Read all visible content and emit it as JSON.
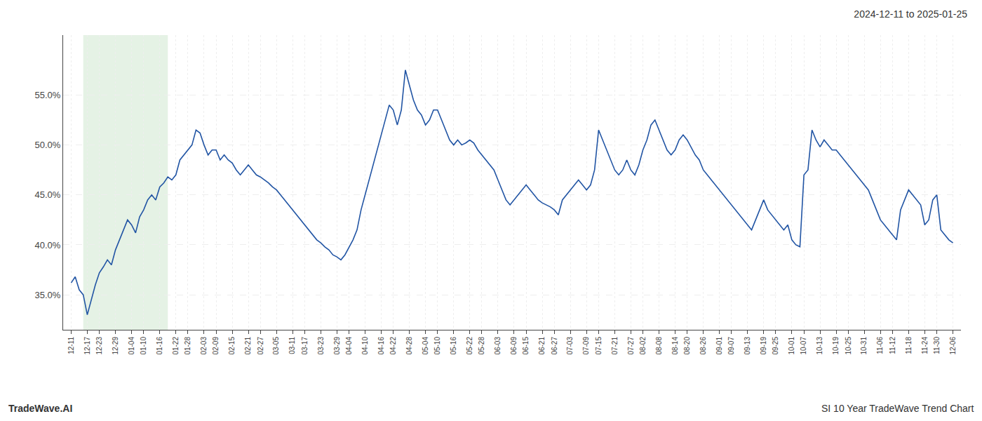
{
  "chart_data": {
    "type": "line",
    "title": "2024-12-11 to 2025-01-25",
    "annotations": [
      "TradeWave.AI",
      "SI 10 Year TradeWave Trend Chart"
    ],
    "color": "#2255a4",
    "grid": true,
    "highlight": {
      "range": [
        3,
        24
      ],
      "color": "#d4ead4"
    },
    "xlim": [
      -2,
      221
    ],
    "ylim": [
      31.5,
      61.0
    ],
    "yticks": [
      {
        "value": 35.0,
        "label": "35.0%"
      },
      {
        "value": 40.0,
        "label": "40.0%"
      },
      {
        "value": 45.0,
        "label": "45.0%"
      },
      {
        "value": 50.0,
        "label": "50.0%"
      },
      {
        "value": 55.0,
        "label": "55.0%"
      }
    ],
    "categories": [
      "12-11",
      null,
      null,
      null,
      "12-17",
      null,
      null,
      "12-23",
      null,
      null,
      null,
      "12-29",
      null,
      null,
      null,
      "01-04",
      null,
      null,
      "01-10",
      null,
      null,
      null,
      "01-16",
      null,
      null,
      null,
      "01-22",
      null,
      null,
      "01-28",
      null,
      null,
      null,
      "02-03",
      null,
      null,
      "02-09",
      null,
      null,
      null,
      "02-15",
      null,
      null,
      null,
      "02-21",
      null,
      null,
      "02-27",
      null,
      null,
      null,
      "03-05",
      null,
      null,
      null,
      "03-11",
      null,
      null,
      "03-17",
      null,
      null,
      null,
      "03-23",
      null,
      null,
      null,
      "03-29",
      null,
      null,
      "04-04",
      null,
      null,
      null,
      "04-10",
      null,
      null,
      null,
      "04-16",
      null,
      null,
      "04-22",
      null,
      null,
      null,
      "04-28",
      null,
      null,
      null,
      "05-04",
      null,
      null,
      "05-10",
      null,
      null,
      null,
      "05-16",
      null,
      null,
      null,
      "05-22",
      null,
      null,
      "05-28",
      null,
      null,
      null,
      "06-03",
      null,
      null,
      null,
      "06-09",
      null,
      null,
      "06-15",
      null,
      null,
      null,
      "06-21",
      null,
      null,
      "06-27",
      null,
      null,
      null,
      "07-03",
      null,
      null,
      null,
      "07-09",
      null,
      null,
      "07-15",
      null,
      null,
      null,
      "07-21",
      null,
      null,
      null,
      "07-27",
      null,
      null,
      "08-02",
      null,
      null,
      null,
      "08-08",
      null,
      null,
      null,
      "08-14",
      null,
      null,
      "08-20",
      null,
      null,
      null,
      "08-26",
      null,
      null,
      null,
      "09-01",
      null,
      null,
      "09-07",
      null,
      null,
      null,
      "09-13",
      null,
      null,
      null,
      "09-19",
      null,
      null,
      "09-25",
      null,
      null,
      null,
      "10-01",
      null,
      null,
      "10-07",
      null,
      null,
      null,
      "10-13",
      null,
      null,
      null,
      "10-19",
      null,
      null,
      "10-25",
      null,
      null,
      null,
      "10-31",
      null,
      null,
      null,
      "11-06",
      null,
      null,
      "11-12",
      null,
      null,
      null,
      "11-18",
      null,
      null,
      null,
      "11-24",
      null,
      null,
      "11-30",
      null,
      null,
      null,
      "12-06"
    ],
    "values": [
      36.2,
      36.8,
      35.5,
      35.0,
      33.0,
      34.5,
      36.0,
      37.2,
      37.8,
      38.5,
      38.0,
      39.5,
      40.5,
      41.5,
      42.5,
      42.0,
      41.2,
      42.8,
      43.5,
      44.5,
      45.0,
      44.5,
      45.8,
      46.2,
      46.8,
      46.5,
      47.0,
      48.5,
      49.0,
      49.5,
      50.0,
      51.5,
      51.2,
      50.0,
      49.0,
      49.5,
      49.5,
      48.5,
      49.0,
      48.5,
      48.2,
      47.5,
      47.0,
      47.5,
      48.0,
      47.5,
      47.0,
      46.8,
      46.5,
      46.2,
      45.8,
      45.5,
      45.0,
      44.5,
      44.0,
      43.5,
      43.0,
      42.5,
      42.0,
      41.5,
      41.0,
      40.5,
      40.2,
      39.8,
      39.5,
      39.0,
      38.8,
      38.5,
      39.0,
      39.8,
      40.5,
      41.5,
      43.5,
      45.0,
      46.5,
      48.0,
      49.5,
      51.0,
      52.5,
      54.0,
      53.5,
      52.0,
      53.5,
      57.5,
      56.0,
      54.5,
      53.5,
      53.0,
      52.0,
      52.5,
      53.5,
      53.5,
      52.5,
      51.5,
      50.5,
      50.0,
      50.5,
      50.0,
      50.2,
      50.5,
      50.2,
      49.5,
      49.0,
      48.5,
      48.0,
      47.5,
      46.5,
      45.5,
      44.5,
      44.0,
      44.5,
      45.0,
      45.5,
      46.0,
      45.5,
      45.0,
      44.5,
      44.2,
      44.0,
      43.8,
      43.5,
      43.0,
      44.5,
      45.0,
      45.5,
      46.0,
      46.5,
      46.0,
      45.5,
      46.0,
      47.5,
      51.5,
      50.5,
      49.5,
      48.5,
      47.5,
      47.0,
      47.5,
      48.5,
      47.5,
      47.0,
      48.0,
      49.5,
      50.5,
      52.0,
      52.5,
      51.5,
      50.5,
      49.5,
      49.0,
      49.5,
      50.5,
      51.0,
      50.5,
      49.8,
      49.0,
      48.5,
      47.5,
      47.0,
      46.5,
      46.0,
      45.5,
      45.0,
      44.5,
      44.0,
      43.5,
      43.0,
      42.5,
      42.0,
      41.5,
      42.5,
      43.5,
      44.5,
      43.5,
      43.0,
      42.5,
      42.0,
      41.5,
      42.0,
      40.5,
      40.0,
      39.8,
      47.0,
      47.5,
      51.5,
      50.5,
      49.8,
      50.5,
      50.0,
      49.5,
      49.5,
      49.0,
      48.5,
      48.0,
      47.5,
      47.0,
      46.5,
      46.0,
      45.5,
      44.5,
      43.5,
      42.5,
      42.0,
      41.5,
      41.0,
      40.5,
      43.5,
      44.5,
      45.5,
      45.0,
      44.5,
      44.0,
      42.0,
      42.5,
      44.5,
      45.0,
      41.5,
      41.0,
      40.5,
      40.2
    ]
  }
}
